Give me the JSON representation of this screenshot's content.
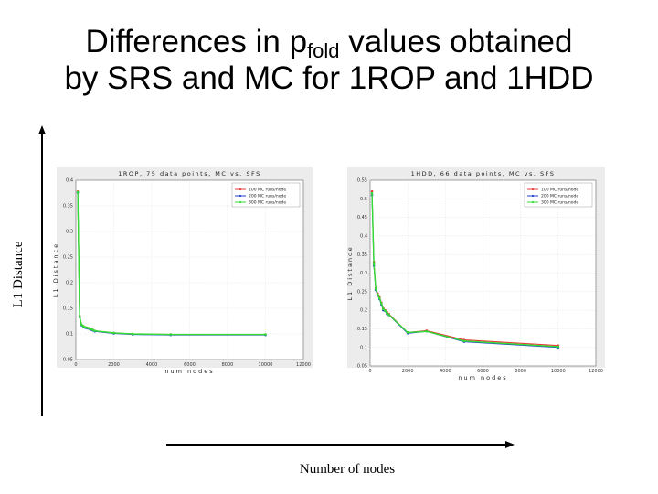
{
  "slide": {
    "title_before": "Differences in p",
    "title_sub": "fold",
    "title_after": " values obtained",
    "title_line2": "by SRS and MC for 1ROP and 1HDD",
    "ylabel": "L1 Distance",
    "xlabel": "Number of nodes"
  },
  "colors": {
    "red": "#e53935",
    "blue": "#1e3fcf",
    "green": "#33dd33"
  },
  "chart_data": [
    {
      "type": "line",
      "title": "1ROP, 75 data points, MC vs. SFS",
      "xlabel": "num nodes",
      "ylabel": "L1 Distance",
      "xlim": [
        0,
        12000
      ],
      "ylim": [
        0.05,
        0.4
      ],
      "xticks": [
        "0",
        "2000",
        "4000",
        "6000",
        "8000",
        "10000",
        "12000"
      ],
      "yticks": [
        "0.05",
        "0.1",
        "0.15",
        "0.2",
        "0.25",
        "0.3",
        "0.35",
        "0.4"
      ],
      "grid": true,
      "legend_position": "top-right",
      "x": [
        100,
        200,
        300,
        400,
        500,
        600,
        700,
        800,
        900,
        1000,
        2000,
        3000,
        5000,
        10000
      ],
      "series": [
        {
          "name": "100 MC runs/node",
          "color": "red",
          "values": [
            0.378,
            0.135,
            0.118,
            0.115,
            0.113,
            0.112,
            0.111,
            0.109,
            0.108,
            0.106,
            0.102,
            0.1,
            0.099,
            0.099
          ]
        },
        {
          "name": "200 MC runs/node",
          "color": "blue",
          "values": [
            0.376,
            0.133,
            0.117,
            0.114,
            0.112,
            0.111,
            0.11,
            0.108,
            0.107,
            0.105,
            0.101,
            0.099,
            0.098,
            0.098
          ]
        },
        {
          "name": "300 MC runs/node",
          "color": "green",
          "values": [
            0.377,
            0.134,
            0.118,
            0.115,
            0.113,
            0.112,
            0.111,
            0.109,
            0.108,
            0.106,
            0.102,
            0.1,
            0.099,
            0.099
          ]
        }
      ]
    },
    {
      "type": "line",
      "title": "1HDD, 66 data points, MC vs. SFS",
      "xlabel": "num nodes",
      "ylabel": "L1 Distance",
      "xlim": [
        0,
        12000
      ],
      "ylim": [
        0.05,
        0.55
      ],
      "xticks": [
        "0",
        "2000",
        "4000",
        "6000",
        "8000",
        "10000",
        "12000"
      ],
      "yticks": [
        "0.05",
        "0.1",
        "0.15",
        "0.2",
        "0.25",
        "0.3",
        "0.35",
        "0.4",
        "0.45",
        "0.5",
        "0.55"
      ],
      "grid": true,
      "legend_position": "top-right",
      "x": [
        100,
        200,
        300,
        400,
        500,
        600,
        700,
        800,
        900,
        1000,
        2000,
        3000,
        5000,
        10000
      ],
      "series": [
        {
          "name": "100 MC runs/node",
          "color": "red",
          "values": [
            0.52,
            0.33,
            0.26,
            0.245,
            0.235,
            0.22,
            0.205,
            0.2,
            0.195,
            0.19,
            0.14,
            0.145,
            0.12,
            0.105
          ]
        },
        {
          "name": "200 MC runs/node",
          "color": "blue",
          "values": [
            0.51,
            0.32,
            0.255,
            0.24,
            0.23,
            0.215,
            0.2,
            0.198,
            0.19,
            0.187,
            0.138,
            0.143,
            0.115,
            0.1
          ]
        },
        {
          "name": "300 MC runs/node",
          "color": "green",
          "values": [
            0.515,
            0.325,
            0.258,
            0.242,
            0.232,
            0.218,
            0.203,
            0.199,
            0.192,
            0.188,
            0.14,
            0.143,
            0.117,
            0.102
          ]
        }
      ]
    }
  ]
}
